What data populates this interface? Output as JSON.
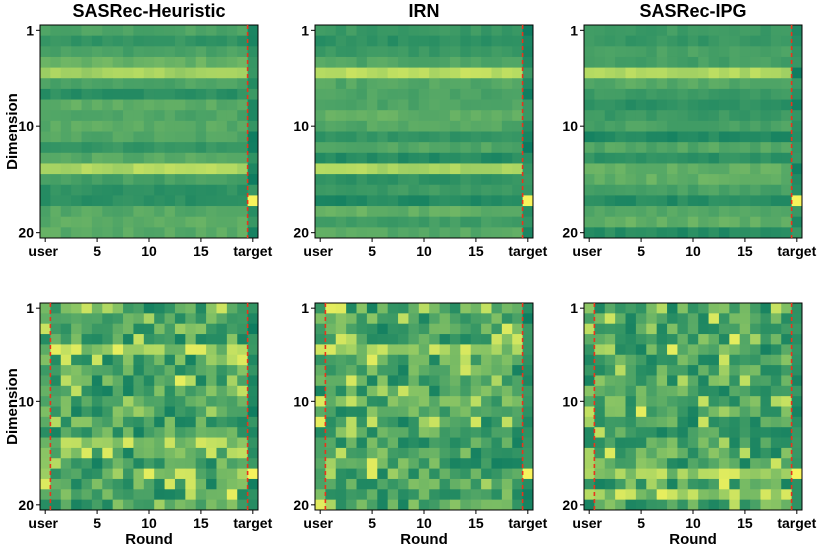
{
  "figure": {
    "ylabel": "Dimension",
    "xlabel": "Round",
    "colormap": [
      "#00735f",
      "#2a8f63",
      "#4ea466",
      "#7fbf64",
      "#b8dc62",
      "#f7f45c"
    ],
    "boundary_color": "#e8331c"
  },
  "chart_data": [
    {
      "type": "heatmap",
      "title": "SASRec-Heuristic",
      "row": "top",
      "rows": 20,
      "cols": 21,
      "x_tick_labels": [
        "user",
        "5",
        "10",
        "15",
        "target"
      ],
      "y_tick_labels": [
        "1",
        "10",
        "20"
      ],
      "boundaries": [
        19.5
      ],
      "bright_rows": [
        5,
        14
      ],
      "target_highlight_row": 17
    },
    {
      "type": "heatmap",
      "title": "IRN",
      "row": "top",
      "rows": 20,
      "cols": 21,
      "x_tick_labels": [
        "user",
        "5",
        "10",
        "15",
        "target"
      ],
      "y_tick_labels": [
        "1",
        "10",
        "20"
      ],
      "boundaries": [
        19.5
      ],
      "bright_rows": [
        5,
        14
      ],
      "target_highlight_row": 17
    },
    {
      "type": "heatmap",
      "title": "SASRec-IPG",
      "row": "top",
      "rows": 20,
      "cols": 21,
      "x_tick_labels": [
        "user",
        "5",
        "10",
        "15",
        "target"
      ],
      "y_tick_labels": [
        "1",
        "10",
        "20"
      ],
      "boundaries": [
        19.5
      ],
      "bright_rows": [
        5
      ],
      "target_highlight_row": 17
    },
    {
      "type": "heatmap",
      "title": "",
      "row": "bottom",
      "rows": 20,
      "cols": 21,
      "x_tick_labels": [
        "user",
        "5",
        "10",
        "15",
        "target"
      ],
      "y_tick_labels": [
        "1",
        "10",
        "20"
      ],
      "boundaries": [
        0.5,
        19.5
      ],
      "bright_rows": [
        5,
        14
      ],
      "target_highlight_row": 17
    },
    {
      "type": "heatmap",
      "title": "",
      "row": "bottom",
      "rows": 20,
      "cols": 21,
      "x_tick_labels": [
        "user",
        "5",
        "10",
        "15",
        "target"
      ],
      "y_tick_labels": [
        "1",
        "10",
        "20"
      ],
      "boundaries": [
        0.5,
        19.5
      ],
      "bright_rows": [
        5
      ],
      "target_highlight_row": 17
    },
    {
      "type": "heatmap",
      "title": "",
      "row": "bottom",
      "rows": 20,
      "cols": 21,
      "x_tick_labels": [
        "user",
        "5",
        "10",
        "15",
        "target"
      ],
      "y_tick_labels": [
        "1",
        "10",
        "20"
      ],
      "boundaries": [
        0.5,
        19.5
      ],
      "bright_rows": [
        17,
        19
      ],
      "target_highlight_row": 17
    }
  ]
}
